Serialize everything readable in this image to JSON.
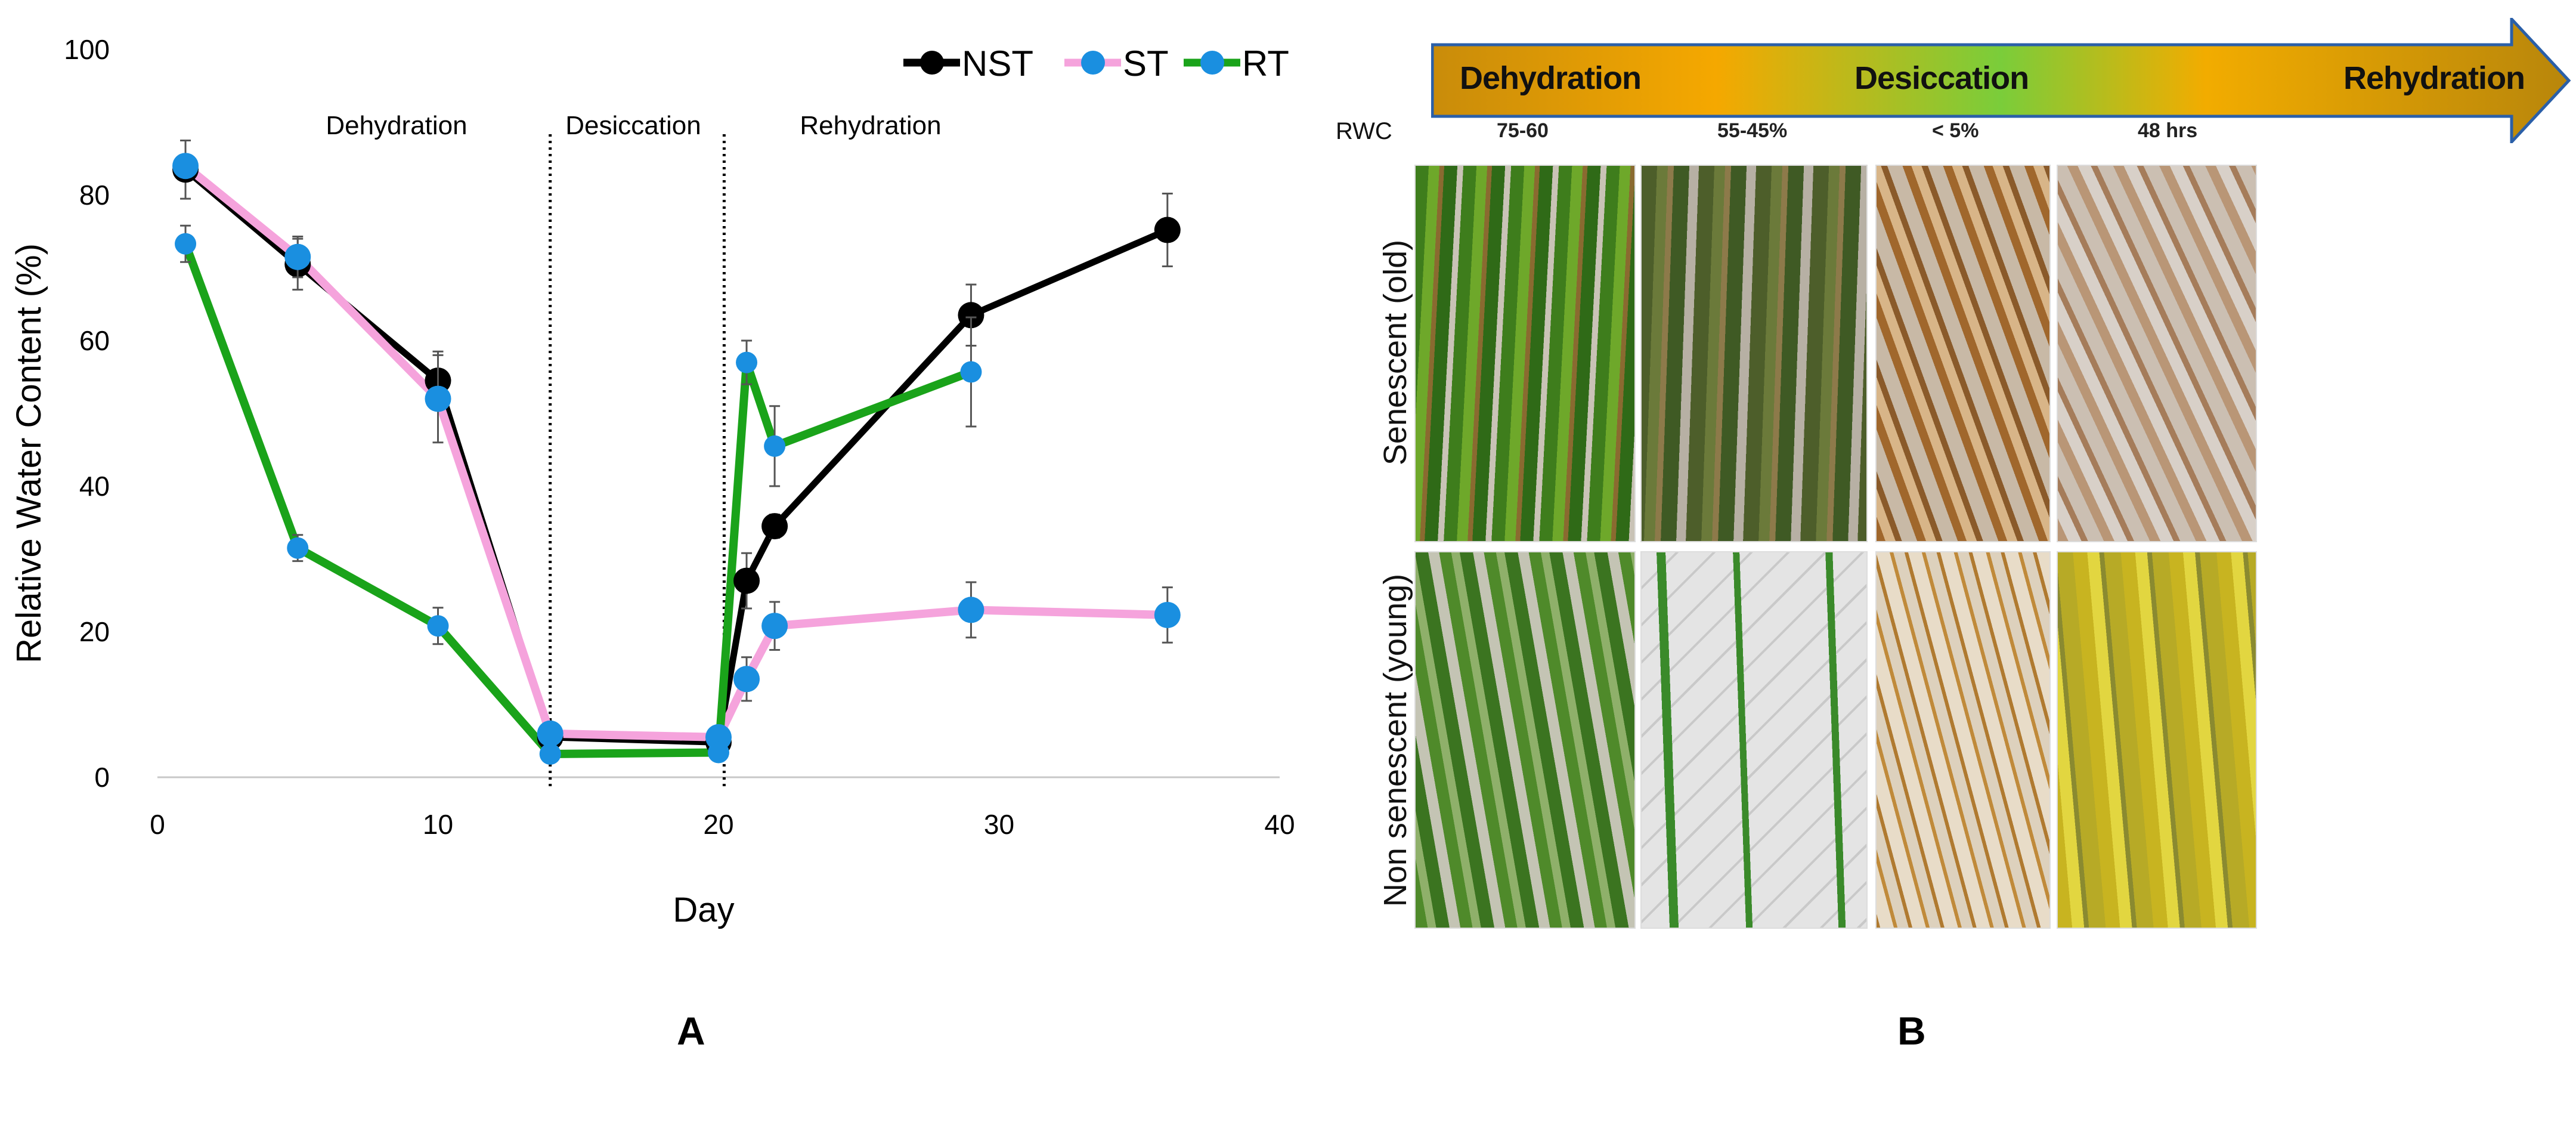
{
  "chart_data": {
    "type": "line",
    "title": "",
    "xlabel": "Day",
    "ylabel": "Relative Water Content (%)",
    "xlim": [
      0,
      40
    ],
    "ylim": [
      0,
      100
    ],
    "xticks": [
      "0",
      "10",
      "20",
      "30",
      "40"
    ],
    "yticks": [
      "0",
      "20",
      "40",
      "60",
      "80",
      "100"
    ],
    "legend_position": "top-right",
    "phase_dividers": [
      14,
      20.2
    ],
    "phase_labels": [
      "Dehydration",
      "Desiccation",
      "Rehydration"
    ],
    "series": [
      {
        "name": "NST",
        "line_color": "#000000",
        "marker_color": "#000000",
        "x": [
          1,
          5,
          10,
          14,
          20,
          21,
          22,
          29,
          36
        ],
        "y": [
          83.5,
          70.5,
          54.5,
          5.5,
          4.8,
          27,
          34.5,
          63.5,
          75.2
        ],
        "err": [
          4,
          3.5,
          4,
          0.5,
          0.5,
          3.8,
          1.6,
          4.2,
          5
        ]
      },
      {
        "name": "ST",
        "line_color": "#f5a3dc",
        "marker_color": "#1a8fe0",
        "x": [
          1,
          5,
          10,
          14,
          20,
          21,
          22,
          29,
          36
        ],
        "y": [
          84,
          71.5,
          52,
          6,
          5.5,
          13.5,
          20.8,
          23,
          22.3
        ],
        "err": [
          1.5,
          2.8,
          6,
          0.5,
          0.5,
          3,
          3.3,
          3.8,
          3.8
        ]
      },
      {
        "name": "RT",
        "line_color": "#1aa31a",
        "marker_color": "#1a8fe0",
        "x": [
          1,
          5,
          10,
          14,
          20,
          21,
          22,
          29
        ],
        "y": [
          73.3,
          31.5,
          20.8,
          3.2,
          3.4,
          57,
          45.5,
          55.7
        ],
        "err": [
          2.5,
          1.8,
          2.5,
          0.4,
          0.4,
          3,
          5.5,
          7.5
        ]
      }
    ]
  },
  "panel_a_label": "A",
  "panel_b": {
    "label": "B",
    "stages": [
      "Dehydration",
      "Desiccation",
      "Rehydration"
    ],
    "rwc_title": "RWC",
    "rwc_values": [
      "75-60",
      "55-45%",
      "< 5%",
      "48 hrs"
    ],
    "row_labels": [
      "Senescent (old)",
      "Non senescent (young)"
    ]
  }
}
